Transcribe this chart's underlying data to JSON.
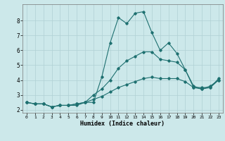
{
  "title": "",
  "xlabel": "Humidex (Indice chaleur)",
  "background_color": "#cce8ea",
  "grid_color": "#b0d0d4",
  "line_color": "#1e7070",
  "xlim": [
    -0.5,
    23.5
  ],
  "ylim": [
    1.8,
    9.1
  ],
  "xticks": [
    0,
    1,
    2,
    3,
    4,
    5,
    6,
    7,
    8,
    9,
    10,
    11,
    12,
    13,
    14,
    15,
    16,
    17,
    18,
    19,
    20,
    21,
    22,
    23
  ],
  "yticks": [
    2,
    3,
    4,
    5,
    6,
    7,
    8
  ],
  "line1_x": [
    0,
    1,
    2,
    3,
    4,
    5,
    6,
    7,
    8,
    9,
    10,
    11,
    12,
    13,
    14,
    15,
    16,
    17,
    18,
    19,
    20,
    21,
    22,
    23
  ],
  "line1_y": [
    2.5,
    2.4,
    2.4,
    2.2,
    2.3,
    2.3,
    2.3,
    2.5,
    2.5,
    4.2,
    6.5,
    8.2,
    7.8,
    8.5,
    8.6,
    7.2,
    6.0,
    6.5,
    5.8,
    4.7,
    3.5,
    3.5,
    3.5,
    4.1
  ],
  "line2_x": [
    0,
    1,
    2,
    3,
    4,
    5,
    6,
    7,
    8,
    9,
    10,
    11,
    12,
    13,
    14,
    15,
    16,
    17,
    18,
    19,
    20,
    21,
    22,
    23
  ],
  "line2_y": [
    2.5,
    2.4,
    2.4,
    2.2,
    2.3,
    2.3,
    2.4,
    2.5,
    3.0,
    3.4,
    4.0,
    4.8,
    5.3,
    5.6,
    5.9,
    5.9,
    5.4,
    5.3,
    5.2,
    4.7,
    3.6,
    3.4,
    3.6,
    4.0
  ],
  "line3_x": [
    0,
    1,
    2,
    3,
    4,
    5,
    6,
    7,
    8,
    9,
    10,
    11,
    12,
    13,
    14,
    15,
    16,
    17,
    18,
    19,
    20,
    21,
    22,
    23
  ],
  "line3_y": [
    2.5,
    2.4,
    2.4,
    2.2,
    2.3,
    2.3,
    2.4,
    2.5,
    2.7,
    2.9,
    3.2,
    3.5,
    3.7,
    3.9,
    4.1,
    4.2,
    4.1,
    4.1,
    4.1,
    3.9,
    3.5,
    3.4,
    3.5,
    4.0
  ]
}
